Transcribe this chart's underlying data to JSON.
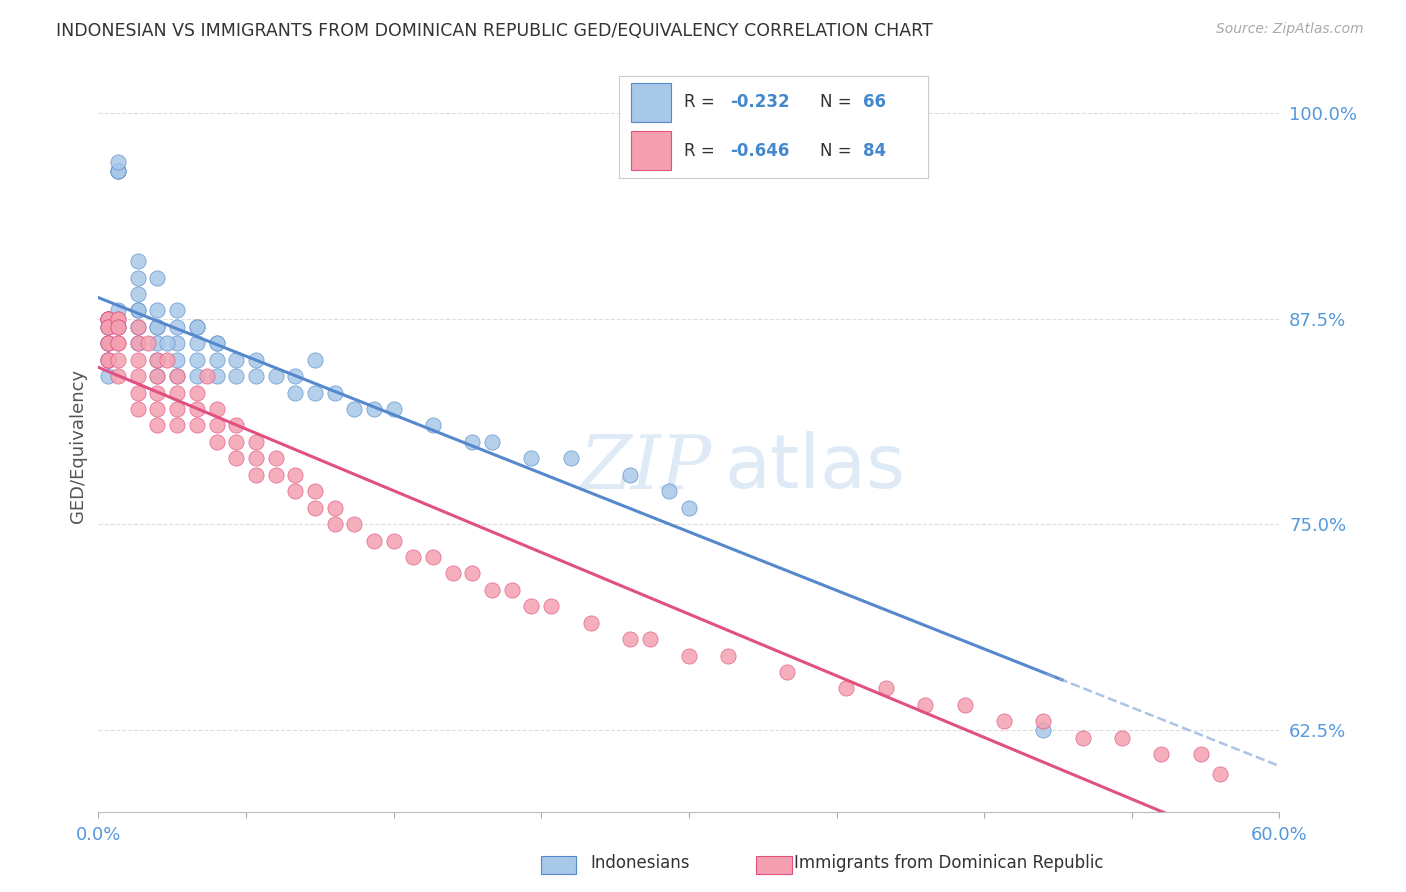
{
  "title": "INDONESIAN VS IMMIGRANTS FROM DOMINICAN REPUBLIC GED/EQUIVALENCY CORRELATION CHART",
  "source": "Source: ZipAtlas.com",
  "ylabel": "GED/Equivalency",
  "right_yticks": [
    1.0,
    0.875,
    0.75,
    0.625
  ],
  "right_yticklabels": [
    "100.0%",
    "87.5%",
    "75.0%",
    "62.5%"
  ],
  "xlim": [
    0.0,
    0.6
  ],
  "ylim": [
    0.575,
    1.02
  ],
  "blue_color": "#a8c8e8",
  "pink_color": "#f4a0b0",
  "trend_blue_solid": "#5588cc",
  "trend_blue_dash": "#88aadd",
  "trend_pink": "#e05080",
  "watermark_color": "#c8ddf0",
  "blue_scatter_x": [
    0.01,
    0.01,
    0.01,
    0.01,
    0.01,
    0.01,
    0.02,
    0.02,
    0.02,
    0.02,
    0.02,
    0.02,
    0.02,
    0.03,
    0.03,
    0.03,
    0.03,
    0.03,
    0.03,
    0.04,
    0.04,
    0.04,
    0.04,
    0.04,
    0.05,
    0.05,
    0.05,
    0.05,
    0.06,
    0.06,
    0.06,
    0.07,
    0.07,
    0.08,
    0.08,
    0.09,
    0.1,
    0.1,
    0.11,
    0.12,
    0.13,
    0.14,
    0.15,
    0.17,
    0.19,
    0.2,
    0.22,
    0.24,
    0.27,
    0.29,
    0.005,
    0.005,
    0.005,
    0.005,
    0.005,
    0.005,
    0.005,
    0.005,
    0.005,
    0.03,
    0.035,
    0.05,
    0.06,
    0.11,
    0.3,
    0.48
  ],
  "blue_scatter_y": [
    0.965,
    0.965,
    0.965,
    0.97,
    0.88,
    0.87,
    0.91,
    0.9,
    0.89,
    0.88,
    0.88,
    0.87,
    0.86,
    0.9,
    0.88,
    0.87,
    0.86,
    0.85,
    0.84,
    0.88,
    0.87,
    0.86,
    0.85,
    0.84,
    0.87,
    0.86,
    0.85,
    0.84,
    0.86,
    0.85,
    0.84,
    0.85,
    0.84,
    0.85,
    0.84,
    0.84,
    0.83,
    0.84,
    0.83,
    0.83,
    0.82,
    0.82,
    0.82,
    0.81,
    0.8,
    0.8,
    0.79,
    0.79,
    0.78,
    0.77,
    0.875,
    0.875,
    0.87,
    0.87,
    0.86,
    0.86,
    0.85,
    0.85,
    0.84,
    0.87,
    0.86,
    0.87,
    0.86,
    0.85,
    0.76,
    0.625
  ],
  "pink_scatter_x": [
    0.005,
    0.005,
    0.005,
    0.005,
    0.005,
    0.005,
    0.005,
    0.005,
    0.005,
    0.005,
    0.01,
    0.01,
    0.01,
    0.01,
    0.01,
    0.01,
    0.01,
    0.01,
    0.02,
    0.02,
    0.02,
    0.02,
    0.02,
    0.02,
    0.03,
    0.03,
    0.03,
    0.03,
    0.03,
    0.04,
    0.04,
    0.04,
    0.04,
    0.05,
    0.05,
    0.05,
    0.06,
    0.06,
    0.06,
    0.07,
    0.07,
    0.07,
    0.08,
    0.08,
    0.08,
    0.09,
    0.09,
    0.1,
    0.1,
    0.11,
    0.11,
    0.12,
    0.12,
    0.13,
    0.14,
    0.15,
    0.16,
    0.17,
    0.18,
    0.19,
    0.2,
    0.21,
    0.22,
    0.23,
    0.25,
    0.27,
    0.28,
    0.3,
    0.32,
    0.35,
    0.38,
    0.4,
    0.42,
    0.44,
    0.46,
    0.48,
    0.5,
    0.52,
    0.54,
    0.56,
    0.025,
    0.035,
    0.055,
    0.57
  ],
  "pink_scatter_y": [
    0.875,
    0.875,
    0.875,
    0.875,
    0.87,
    0.87,
    0.86,
    0.86,
    0.85,
    0.85,
    0.875,
    0.875,
    0.87,
    0.87,
    0.86,
    0.86,
    0.85,
    0.84,
    0.87,
    0.86,
    0.85,
    0.84,
    0.83,
    0.82,
    0.85,
    0.84,
    0.83,
    0.82,
    0.81,
    0.84,
    0.83,
    0.82,
    0.81,
    0.83,
    0.82,
    0.81,
    0.82,
    0.81,
    0.8,
    0.81,
    0.8,
    0.79,
    0.8,
    0.79,
    0.78,
    0.79,
    0.78,
    0.78,
    0.77,
    0.77,
    0.76,
    0.76,
    0.75,
    0.75,
    0.74,
    0.74,
    0.73,
    0.73,
    0.72,
    0.72,
    0.71,
    0.71,
    0.7,
    0.7,
    0.69,
    0.68,
    0.68,
    0.67,
    0.67,
    0.66,
    0.65,
    0.65,
    0.64,
    0.64,
    0.63,
    0.63,
    0.62,
    0.62,
    0.61,
    0.61,
    0.86,
    0.85,
    0.84,
    0.598
  ],
  "background_color": "#ffffff",
  "grid_color": "#dddddd"
}
